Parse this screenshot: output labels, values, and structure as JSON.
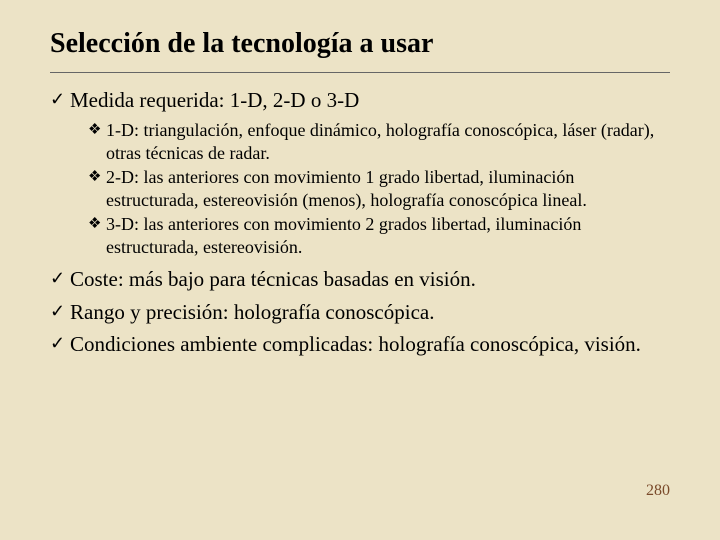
{
  "background_color": "#ece3c6",
  "text_color": "#000000",
  "page_number_color": "#7a4a2a",
  "rule_color": "#666666",
  "title_fontsize": 28,
  "l1_fontsize": 21,
  "l2_fontsize": 18,
  "pagenum_fontsize": 16,
  "l1_bullet_glyph": "✓",
  "l2_bullet_glyph": "❖",
  "title": "Selección de la tecnología a usar",
  "items": {
    "i0": "Medida requerida: 1-D, 2-D o 3-D",
    "i0_sub": {
      "s0": "1-D: triangulación, enfoque dinámico, holografía conoscópica, láser (radar), otras técnicas de radar.",
      "s1": "2-D: las anteriores con movimiento 1 grado libertad, iluminación estructurada, estereovisión (menos), holografía conoscópica lineal.",
      "s2": "3-D: las anteriores con movimiento 2 grados libertad, iluminación estructurada, estereovisión."
    },
    "i1": "Coste: más bajo para técnicas basadas en visión.",
    "i2": "Rango y precisión: holografía conoscópica.",
    "i3": "Condiciones ambiente complicadas: holografía conoscópica, visión."
  },
  "page_number": "280"
}
